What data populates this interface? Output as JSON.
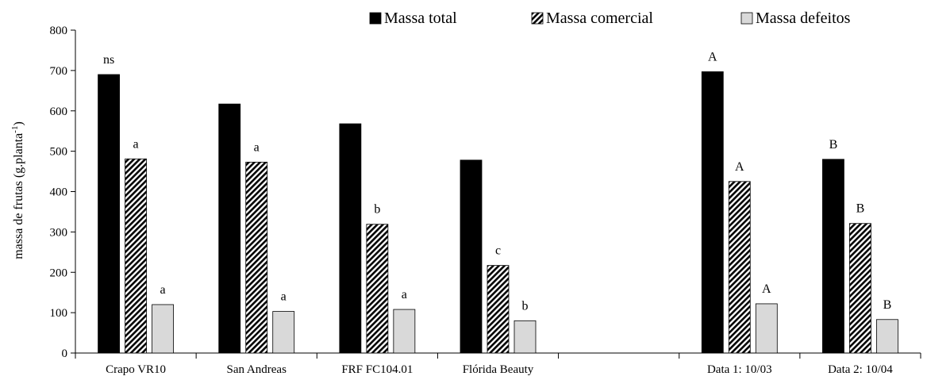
{
  "chart_data": {
    "type": "bar",
    "title": "",
    "xlabel": "",
    "ylabel": "massa de frutas (g.planta",
    "ylabel_sup": "-1",
    "ylabel_end": ")",
    "ylim": [
      0,
      800
    ],
    "yticks": [
      0,
      100,
      200,
      300,
      400,
      500,
      600,
      700,
      800
    ],
    "grid": false,
    "legend_position": "top",
    "categories": [
      "Crapo VR10",
      "San Andreas",
      "FRF FC104.01",
      "Flórida Beauty",
      "",
      "Data 1: 10/03",
      "Data 2: 10/04"
    ],
    "series": [
      {
        "name": "Massa total",
        "fill": "#000000",
        "pattern": "solid",
        "values": [
          690,
          617,
          568,
          478,
          null,
          697,
          480
        ],
        "labels": [
          "ns",
          "",
          "",
          "",
          "",
          "A",
          "B"
        ]
      },
      {
        "name": "Massa comercial",
        "fill": "#ffffff",
        "pattern": "diagonal-hatch",
        "values": [
          481,
          473,
          319,
          217,
          null,
          425,
          321
        ],
        "labels": [
          "a",
          "a",
          "b",
          "c",
          "",
          "A",
          "B"
        ]
      },
      {
        "name": "Massa defeitos",
        "fill": "#d9d9d9",
        "pattern": "solid",
        "values": [
          120,
          103,
          108,
          80,
          null,
          122,
          83
        ],
        "labels": [
          "a",
          "a",
          "a",
          "b",
          "",
          "A",
          "B"
        ]
      }
    ]
  }
}
